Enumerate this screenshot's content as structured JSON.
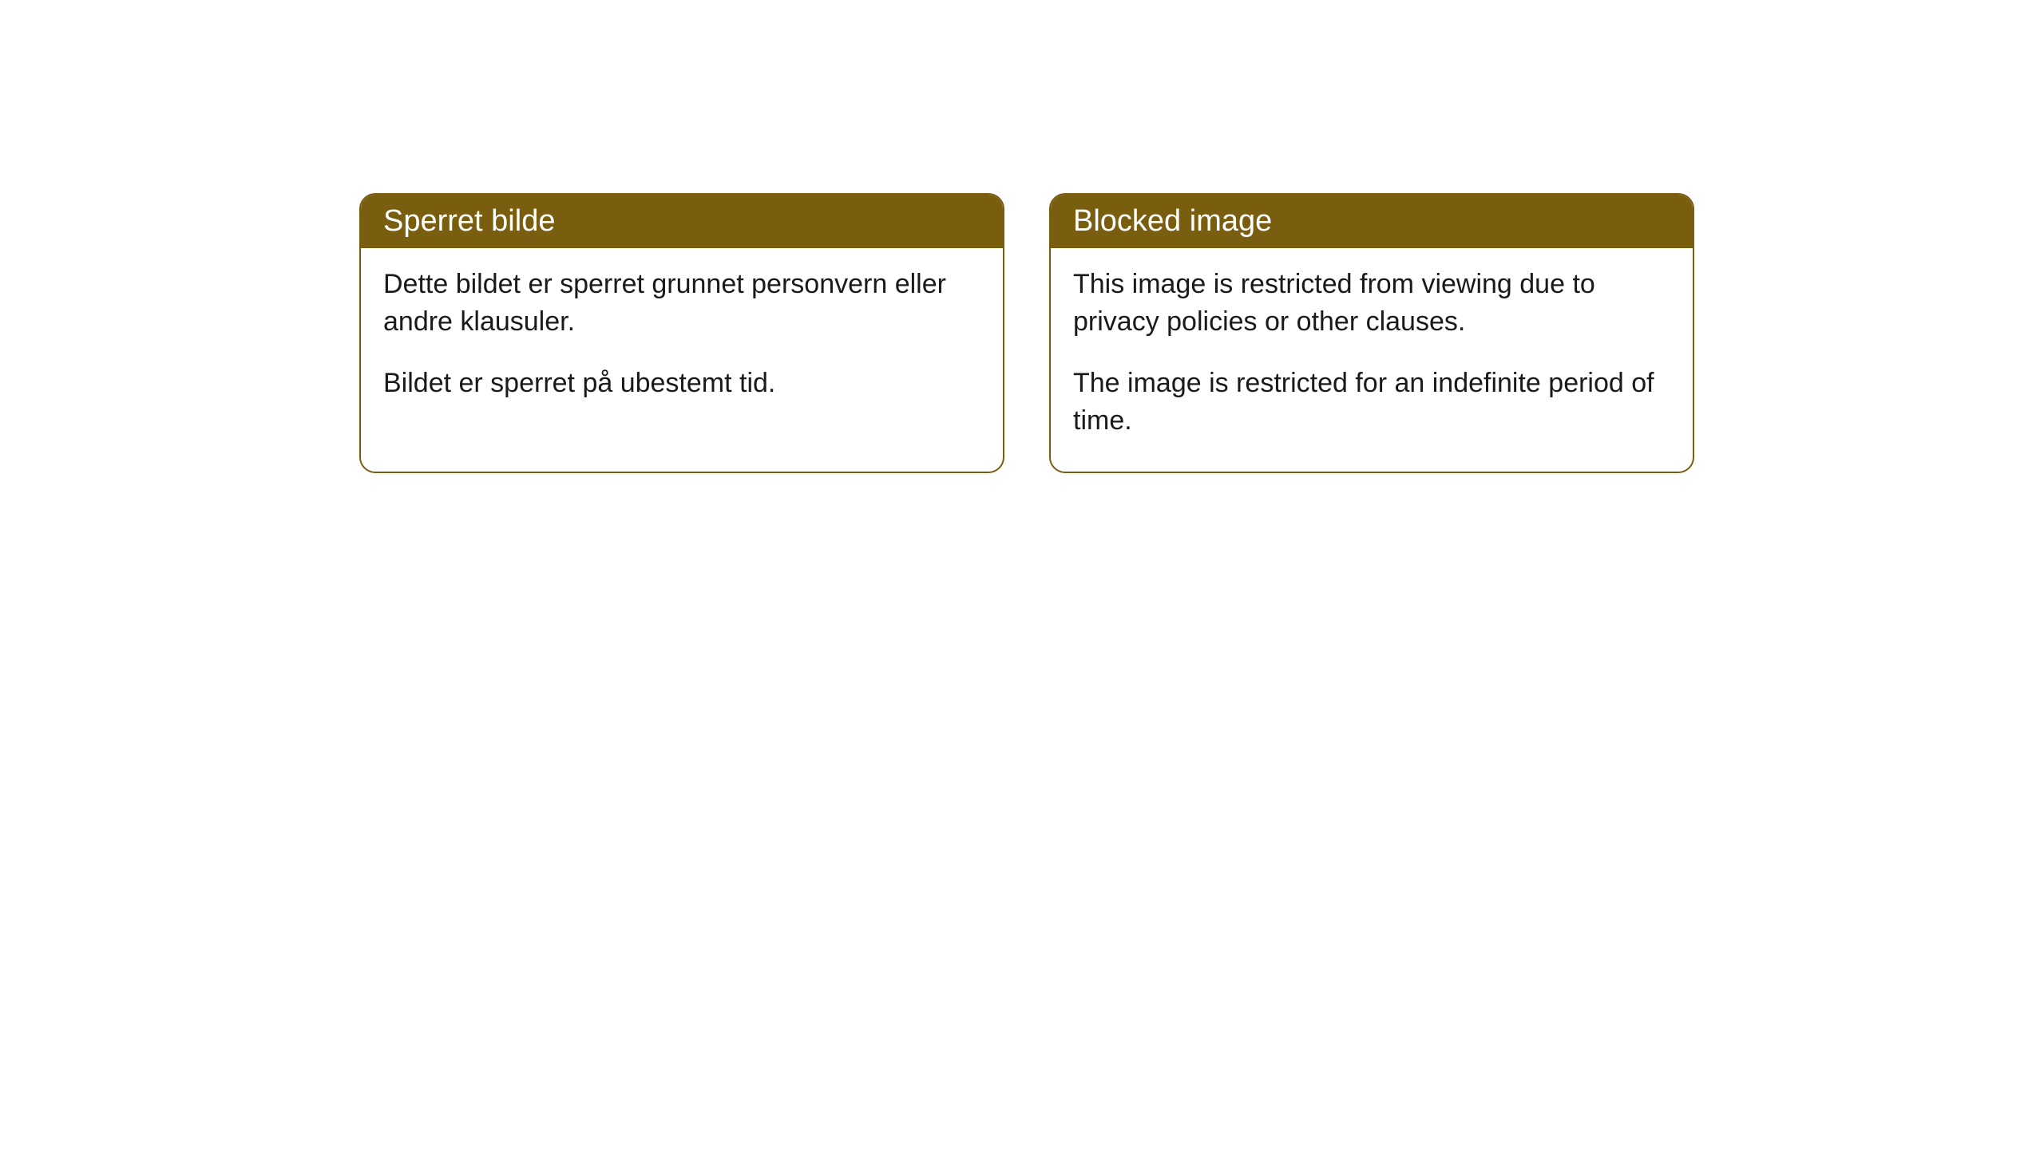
{
  "cards": [
    {
      "title": "Sperret bilde",
      "paragraph1": "Dette bildet er sperret grunnet personvern eller andre klausuler.",
      "paragraph2": "Bildet er sperret på ubestemt tid."
    },
    {
      "title": "Blocked image",
      "paragraph1": "This image is restricted from viewing due to privacy policies or other clauses.",
      "paragraph2": "The image is restricted for an indefinite period of time."
    }
  ],
  "style": {
    "header_background": "#7a5e0f",
    "header_text_color": "#ffffff",
    "body_text_color": "#1a1a1a",
    "card_border_color": "#7a5e0f",
    "card_background": "#ffffff",
    "page_background": "#ffffff",
    "border_radius": 20,
    "header_fontsize": 38,
    "body_fontsize": 34
  }
}
